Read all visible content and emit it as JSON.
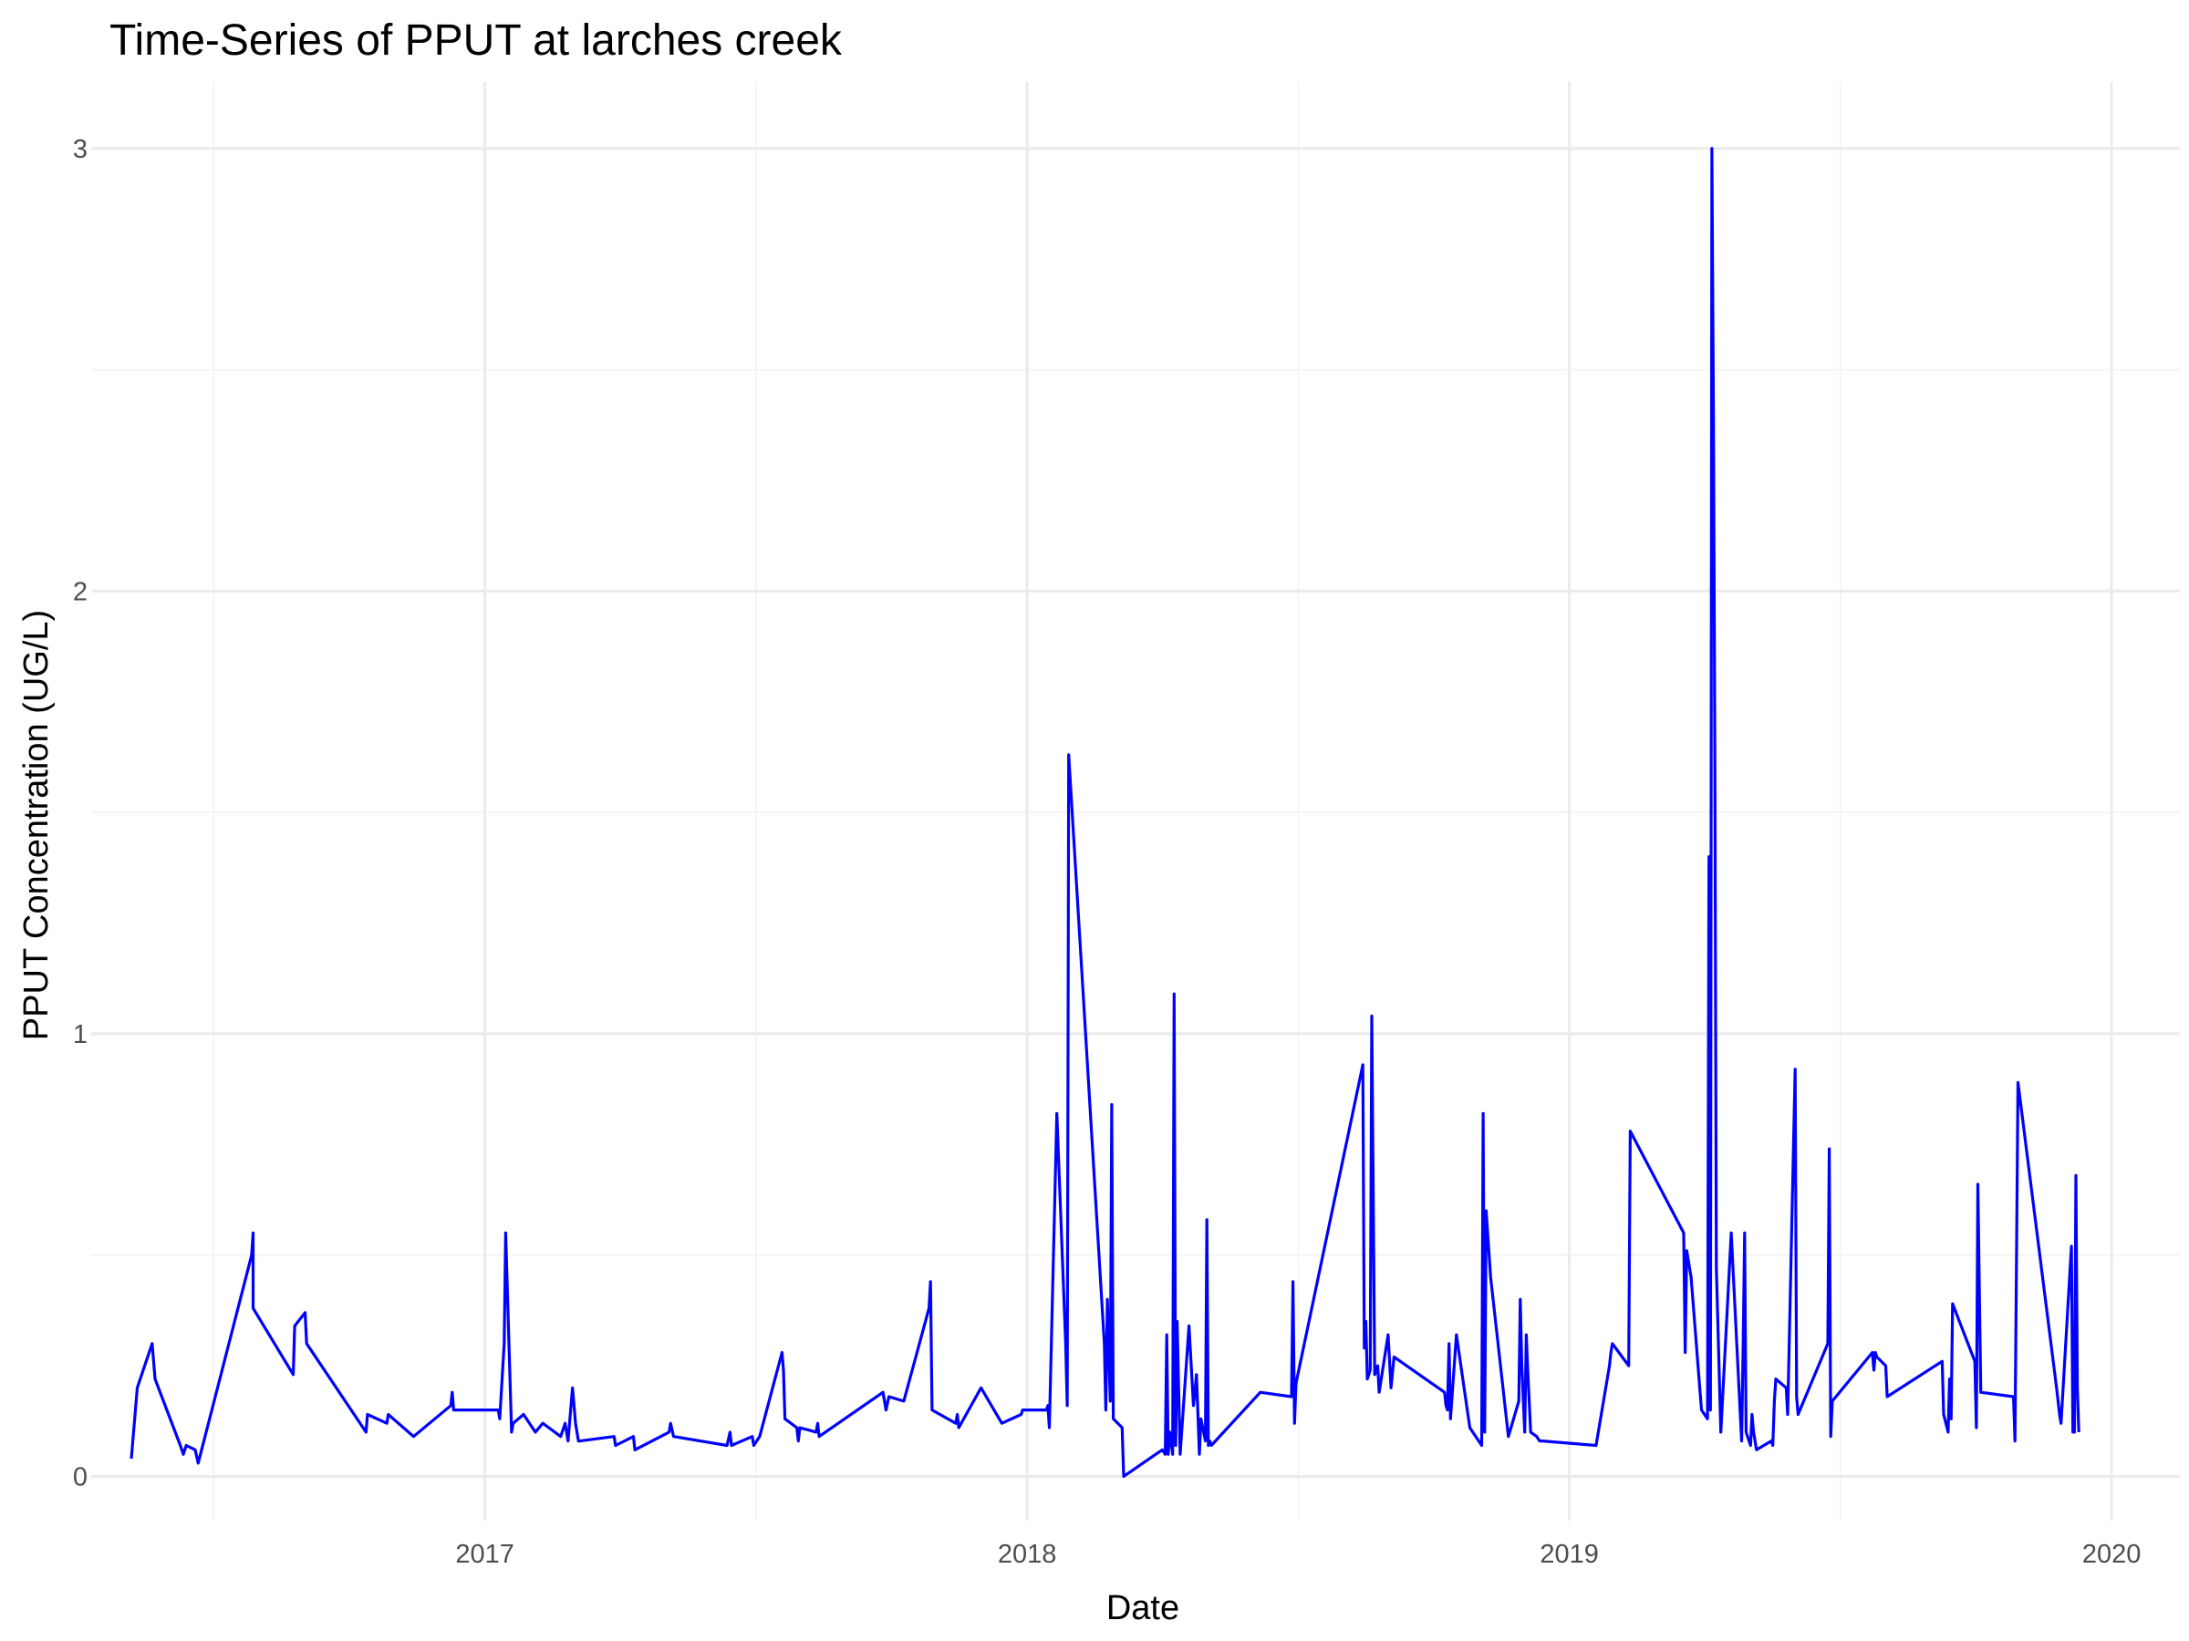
{
  "chart_data": {
    "type": "line",
    "title": "Time-Series of PPUT at larches creek",
    "xlabel": "Date",
    "ylabel": "PPUT Concentration (UG/L)",
    "xlim": [
      "2016-04-11",
      "2020-02-16"
    ],
    "ylim": [
      -0.1,
      3.15
    ],
    "x_ticks": [
      "2017-01-01",
      "2018-01-01",
      "2019-01-01",
      "2020-01-01"
    ],
    "x_tick_labels": [
      "2017",
      "2018",
      "2019",
      "2020"
    ],
    "y_ticks": [
      0,
      1,
      2,
      3
    ],
    "y_tick_labels": [
      "0",
      "1",
      "2",
      "3"
    ],
    "grid": true,
    "legend": "none",
    "series": [
      {
        "color": "#0000ff",
        "x": [
          "2016-05-08",
          "2016-05-12",
          "2016-05-22",
          "2016-05-24",
          "2016-06-10",
          "2016-06-12",
          "2016-06-14",
          "2016-06-20",
          "2016-06-22",
          "2016-07-28",
          "2016-07-29",
          "2016-07-29",
          "2016-08-25",
          "2016-08-26",
          "2016-09-02",
          "2016-09-03",
          "2016-10-13",
          "2016-10-14",
          "2016-10-27",
          "2016-10-28",
          "2016-11-14",
          "2016-12-09",
          "2016-12-10",
          "2016-12-11",
          "2017-01-10",
          "2017-01-11",
          "2017-01-14",
          "2017-01-15",
          "2017-01-19",
          "2017-01-20",
          "2017-01-27",
          "2017-02-04",
          "2017-02-09",
          "2017-02-13",
          "2017-02-21",
          "2017-02-24",
          "2017-02-26",
          "2017-03-01",
          "2017-03-03",
          "2017-03-05",
          "2017-03-06",
          "2017-03-29",
          "2017-03-30",
          "2017-04-11",
          "2017-04-12",
          "2017-05-05",
          "2017-05-06",
          "2017-05-08",
          "2017-06-13",
          "2017-06-15",
          "2017-06-16",
          "2017-06-30",
          "2017-07-01",
          "2017-07-05",
          "2017-07-20",
          "2017-07-21",
          "2017-07-22",
          "2017-07-30",
          "2017-07-31",
          "2017-08-01",
          "2017-08-12",
          "2017-08-13",
          "2017-08-14",
          "2017-09-26",
          "2017-09-28",
          "2017-09-30",
          "2017-10-10",
          "2017-10-27",
          "2017-10-28",
          "2017-10-29",
          "2017-11-14",
          "2017-11-15",
          "2017-11-16",
          "2017-12-01",
          "2017-12-15",
          "2017-12-28",
          "2017-12-29",
          "2017-12-30",
          "2018-01-14",
          "2018-01-15",
          "2018-01-16",
          "2018-01-21",
          "2018-01-27",
          "2018-01-28",
          "2018-01-29",
          "2018-02-22",
          "2018-02-23",
          "2018-02-24",
          "2018-02-26",
          "2018-02-27",
          "2018-02-28",
          "2018-03-06",
          "2018-03-07",
          "2018-04-02",
          "2018-04-04",
          "2018-04-05",
          "2018-04-06",
          "2018-04-07",
          "2018-04-09",
          "2018-04-10",
          "2018-04-11",
          "2018-04-12",
          "2018-04-14",
          "2018-04-20",
          "2018-04-23",
          "2018-04-24",
          "2018-04-25",
          "2018-04-27",
          "2018-04-28",
          "2018-05-01",
          "2018-05-02",
          "2018-05-03",
          "2018-05-04",
          "2018-05-05",
          "2018-06-07",
          "2018-06-28",
          "2018-06-29",
          "2018-06-30",
          "2018-07-01",
          "2018-08-15",
          "2018-08-16",
          "2018-08-17",
          "2018-08-18",
          "2018-08-20",
          "2018-08-21",
          "2018-08-23",
          "2018-08-25",
          "2018-08-26",
          "2018-09-01",
          "2018-09-02",
          "2018-09-03",
          "2018-09-05",
          "2018-10-09",
          "2018-10-10",
          "2018-10-11",
          "2018-10-12",
          "2018-10-13",
          "2018-10-17",
          "2018-10-26",
          "2018-11-03",
          "2018-11-04",
          "2018-11-05",
          "2018-11-06",
          "2018-11-09",
          "2018-11-21",
          "2018-11-28",
          "2018-11-29",
          "2018-11-30",
          "2018-12-02",
          "2018-12-03",
          "2018-12-04",
          "2018-12-06",
          "2018-12-10",
          "2018-12-12",
          "2018-12-14",
          "2019-01-19",
          "2019-01-28",
          "2019-01-29",
          "2019-01-30",
          "2019-02-10",
          "2019-02-11",
          "2019-03-19",
          "2019-03-20",
          "2019-03-21",
          "2019-03-24",
          "2019-03-31",
          "2019-04-04",
          "2019-04-05",
          "2019-04-06",
          "2019-04-07",
          "2019-04-08",
          "2019-04-09",
          "2019-04-10",
          "2019-04-13",
          "2019-04-20",
          "2019-04-27",
          "2019-04-28",
          "2019-04-29",
          "2019-04-30",
          "2019-05-03",
          "2019-05-04",
          "2019-05-05",
          "2019-05-07",
          "2019-05-17",
          "2019-05-18",
          "2019-05-19",
          "2019-05-20",
          "2019-05-27",
          "2019-05-28",
          "2019-06-02",
          "2019-06-03",
          "2019-06-04",
          "2019-06-24",
          "2019-06-25",
          "2019-06-26",
          "2019-06-27",
          "2019-07-24",
          "2019-07-25",
          "2019-07-26",
          "2019-07-27",
          "2019-08-02",
          "2019-08-03",
          "2019-09-09",
          "2019-09-10",
          "2019-09-13",
          "2019-09-14",
          "2019-09-15",
          "2019-09-16",
          "2019-10-01",
          "2019-10-02",
          "2019-10-03",
          "2019-10-05",
          "2019-10-27",
          "2019-10-28",
          "2019-10-30",
          "2019-11-25",
          "2019-11-27",
          "2019-11-28",
          "2019-12-05",
          "2019-12-06",
          "2019-12-07",
          "2019-12-08",
          "2019-12-09",
          "2019-12-10"
        ],
        "y": [
          0.04,
          0.2,
          0.3,
          0.22,
          0.07,
          0.05,
          0.07,
          0.06,
          0.03,
          0.5,
          0.55,
          0.38,
          0.23,
          0.34,
          0.37,
          0.3,
          0.1,
          0.14,
          0.12,
          0.14,
          0.09,
          0.16,
          0.19,
          0.15,
          0.15,
          0.13,
          0.3,
          0.55,
          0.1,
          0.12,
          0.14,
          0.1,
          0.12,
          0.11,
          0.09,
          0.12,
          0.08,
          0.2,
          0.12,
          0.08,
          0.08,
          0.09,
          0.07,
          0.09,
          0.06,
          0.1,
          0.12,
          0.09,
          0.07,
          0.1,
          0.07,
          0.09,
          0.07,
          0.09,
          0.28,
          0.24,
          0.13,
          0.11,
          0.08,
          0.11,
          0.1,
          0.12,
          0.09,
          0.19,
          0.15,
          0.18,
          0.17,
          0.38,
          0.44,
          0.15,
          0.12,
          0.14,
          0.11,
          0.2,
          0.12,
          0.14,
          0.15,
          0.15,
          0.15,
          0.16,
          0.11,
          0.82,
          0.3,
          0.16,
          1.63,
          0.3,
          0.15,
          0.4,
          0.17,
          0.84,
          0.13,
          0.11,
          0.0,
          0.06,
          0.05,
          0.32,
          0.05,
          0.1,
          0.05,
          1.09,
          0.07,
          0.35,
          0.05,
          0.34,
          0.16,
          0.19,
          0.23,
          0.05,
          0.13,
          0.08,
          0.58,
          0.07,
          0.08,
          0.07,
          0.19,
          0.18,
          0.44,
          0.12,
          0.21,
          0.93,
          0.29,
          0.35,
          0.22,
          0.24,
          1.04,
          0.23,
          0.25,
          0.19,
          0.32,
          0.26,
          0.2,
          0.27,
          0.19,
          0.16,
          0.15,
          0.3,
          0.13,
          0.32,
          0.11,
          0.07,
          0.82,
          0.1,
          0.6,
          0.45,
          0.09,
          0.17,
          0.4,
          0.25,
          0.1,
          0.32,
          0.24,
          0.1,
          0.09,
          0.08,
          0.08,
          0.07,
          0.25,
          0.28,
          0.3,
          0.25,
          0.78,
          0.55,
          0.28,
          0.51,
          0.45,
          0.15,
          0.13,
          1.4,
          0.15,
          3.0,
          2.4,
          1.6,
          0.47,
          0.1,
          0.55,
          0.08,
          0.3,
          0.55,
          0.1,
          0.07,
          0.14,
          0.1,
          0.06,
          0.08,
          0.07,
          0.17,
          0.22,
          0.2,
          0.14,
          0.92,
          0.18,
          0.14,
          0.3,
          0.74,
          0.09,
          0.17,
          0.28,
          0.24,
          0.28,
          0.27,
          0.25,
          0.18,
          0.26,
          0.14,
          0.1,
          0.22,
          0.13,
          0.39,
          0.26,
          0.11,
          0.66,
          0.19,
          0.18,
          0.08,
          0.89,
          0.2,
          0.14,
          0.12,
          0.52,
          0.1,
          0.1,
          0.68,
          0.2,
          0.1
        ],
        "note": "estimated from plot; peaks read approximately"
      }
    ]
  }
}
